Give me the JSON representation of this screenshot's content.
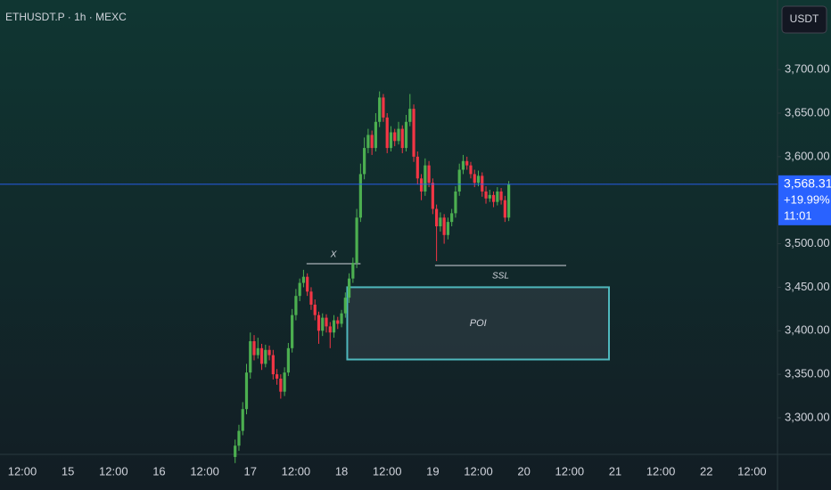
{
  "chart_data": {
    "type": "candlestick",
    "title": "ETHUSDT.P · 1h · MEXC",
    "currency": "USDT",
    "up_color": "#4caf50",
    "down_color": "#f23645",
    "ylim": [
      3258,
      3780
    ],
    "yticks": [
      {
        "value": 3300,
        "label": "3,300.00"
      },
      {
        "value": 3350,
        "label": "3,350.00"
      },
      {
        "value": 3400,
        "label": "3,400.00"
      },
      {
        "value": 3450,
        "label": "3,450.00"
      },
      {
        "value": 3500,
        "label": "3,500.00"
      },
      {
        "value": 3550,
        "label": "3,550.00"
      },
      {
        "value": 3600,
        "label": "3,600.00"
      },
      {
        "value": 3650,
        "label": "3,650.00"
      },
      {
        "value": 3700,
        "label": "3,700.00"
      }
    ],
    "x_labels": [
      "12:00",
      "15",
      "12:00",
      "16",
      "12:00",
      "17",
      "12:00",
      "18",
      "12:00",
      "19",
      "12:00",
      "20",
      "12:00",
      "21",
      "12:00",
      "22",
      "12:00"
    ],
    "open": [
      3255,
      3268,
      3285,
      3310,
      3352,
      3388,
      3372,
      3380,
      3362,
      3378,
      3372,
      3350,
      3345,
      3330,
      3352,
      3380,
      3418,
      3440,
      3455,
      3462,
      3445,
      3430,
      3418,
      3400,
      3415,
      3405,
      3398,
      3412,
      3408,
      3420,
      3438,
      3460,
      3478,
      3530,
      3580,
      3610,
      3625,
      3610,
      3640,
      3668,
      3645,
      3610,
      3628,
      3618,
      3632,
      3610,
      3640,
      3655,
      3600,
      3575,
      3560,
      3590,
      3570,
      3540,
      3520,
      3530,
      3510,
      3525,
      3535,
      3560,
      3585,
      3595,
      3590,
      3580,
      3570,
      3578,
      3560,
      3552,
      3556,
      3548,
      3560,
      3550,
      3530
    ],
    "high": [
      3275,
      3292,
      3318,
      3362,
      3398,
      3395,
      3392,
      3385,
      3384,
      3383,
      3378,
      3356,
      3350,
      3358,
      3386,
      3425,
      3448,
      3460,
      3470,
      3466,
      3450,
      3436,
      3422,
      3420,
      3419,
      3410,
      3418,
      3416,
      3424,
      3444,
      3466,
      3484,
      3540,
      3592,
      3622,
      3632,
      3630,
      3650,
      3675,
      3672,
      3650,
      3635,
      3632,
      3640,
      3636,
      3648,
      3672,
      3660,
      3606,
      3580,
      3598,
      3595,
      3575,
      3545,
      3536,
      3534,
      3530,
      3540,
      3566,
      3592,
      3602,
      3600,
      3594,
      3585,
      3584,
      3582,
      3566,
      3562,
      3560,
      3565,
      3564,
      3555,
      3572
    ],
    "low": [
      3248,
      3262,
      3280,
      3304,
      3345,
      3366,
      3368,
      3355,
      3358,
      3366,
      3344,
      3338,
      3322,
      3325,
      3348,
      3375,
      3412,
      3434,
      3450,
      3440,
      3424,
      3412,
      3385,
      3394,
      3398,
      3380,
      3392,
      3402,
      3404,
      3415,
      3432,
      3455,
      3472,
      3525,
      3574,
      3604,
      3602,
      3606,
      3634,
      3640,
      3604,
      3606,
      3612,
      3614,
      3604,
      3606,
      3635,
      3594,
      3568,
      3550,
      3555,
      3565,
      3534,
      3480,
      3514,
      3500,
      3505,
      3520,
      3530,
      3555,
      3580,
      3585,
      3575,
      3565,
      3566,
      3554,
      3546,
      3548,
      3542,
      3544,
      3545,
      3525,
      3526
    ],
    "close": [
      3268,
      3285,
      3310,
      3352,
      3388,
      3372,
      3380,
      3362,
      3378,
      3372,
      3350,
      3345,
      3330,
      3352,
      3380,
      3418,
      3440,
      3455,
      3462,
      3445,
      3430,
      3418,
      3400,
      3415,
      3405,
      3398,
      3412,
      3408,
      3420,
      3438,
      3460,
      3478,
      3530,
      3580,
      3610,
      3625,
      3610,
      3640,
      3668,
      3645,
      3610,
      3628,
      3618,
      3632,
      3610,
      3640,
      3655,
      3600,
      3575,
      3560,
      3590,
      3570,
      3540,
      3520,
      3530,
      3510,
      3525,
      3535,
      3560,
      3585,
      3595,
      3590,
      3580,
      3570,
      3578,
      3560,
      3552,
      3556,
      3548,
      3560,
      3550,
      3530,
      3568.31
    ],
    "last_price": {
      "value": 3568.31,
      "label": "3,568.31"
    },
    "change": "+19.99%",
    "countdown": "11:01",
    "annotations": [
      {
        "text": "X",
        "price": 3477
      },
      {
        "text": "SSL",
        "price": 3475
      }
    ],
    "zone": {
      "text": "POI",
      "top": 3450,
      "bottom": 3367
    }
  }
}
